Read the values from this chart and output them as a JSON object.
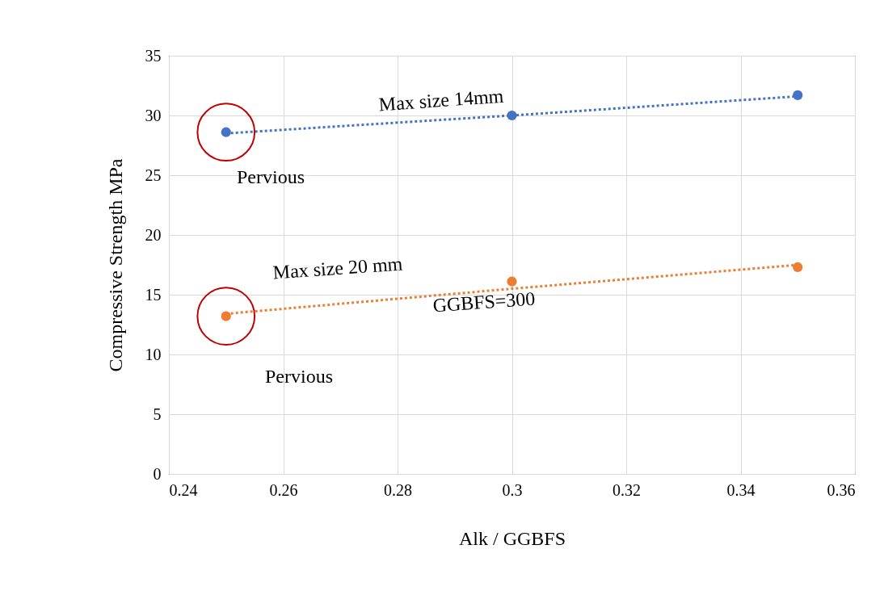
{
  "chart_data": {
    "type": "scatter",
    "xlabel": "Alk / GGBFS",
    "ylabel": "Compressive Strength MPa",
    "x": [
      0.25,
      0.3,
      0.35
    ],
    "series": [
      {
        "color": "#4472c4",
        "values": [
          28.6,
          30.0,
          31.7
        ],
        "marker": "circle"
      },
      {
        "color": "#ed7d31",
        "values": [
          13.2,
          16.1,
          17.3
        ],
        "marker": "circle"
      },
      {
        "type": "line",
        "color": "#4472c4",
        "values": [
          28.5,
          30.0,
          31.6
        ],
        "line_style": "dotted"
      },
      {
        "type": "line",
        "color": "#ed7d31",
        "values": [
          13.4,
          15.5,
          17.5
        ],
        "line_style": "dotted"
      }
    ],
    "xlim": [
      0.24,
      0.36
    ],
    "xticks": [
      0.24,
      0.26,
      0.28,
      0.3,
      0.32,
      0.34,
      0.36
    ],
    "ylim": [
      0,
      35
    ],
    "yticks": [
      0,
      5,
      10,
      15,
      20,
      25,
      30,
      35
    ],
    "annotations": [
      "Max size 14mm",
      "Max size 20 mm",
      "GGBFS=300",
      "Pervious",
      "Pervious"
    ],
    "grid": true
  }
}
